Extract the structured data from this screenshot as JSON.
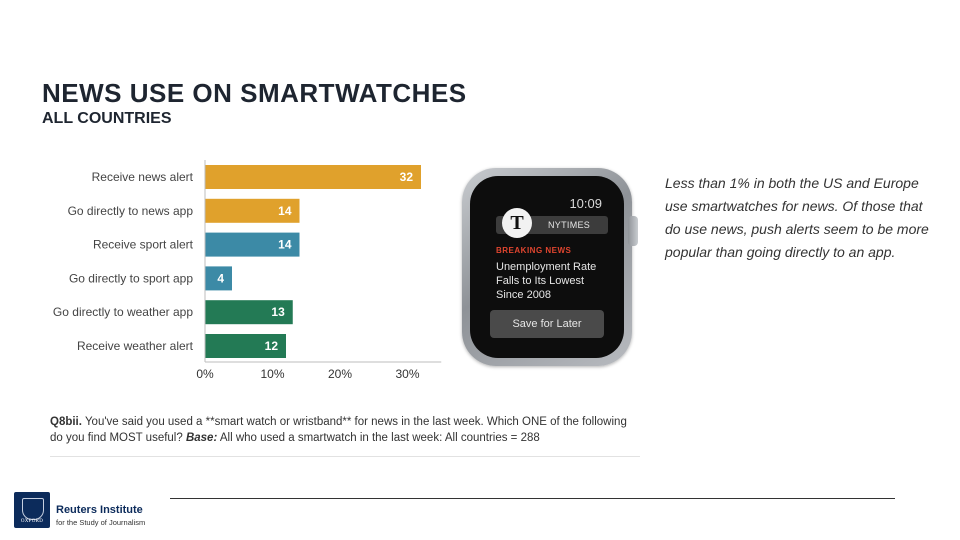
{
  "header": {
    "title": "NEWS USE ON SMARTWATCHES",
    "subtitle": "ALL COUNTRIES"
  },
  "chart_data": {
    "type": "bar",
    "orientation": "horizontal",
    "categories": [
      "Receive news alert",
      "Go directly to news app",
      "Receive sport alert",
      "Go directly to sport app",
      "Go directly to weather app",
      "Receive weather alert"
    ],
    "values": [
      32,
      14,
      14,
      4,
      13,
      12
    ],
    "colors": [
      "#e0a12c",
      "#e0a12c",
      "#3c8aa6",
      "#3c8aa6",
      "#237a55",
      "#237a55"
    ],
    "xticks": [
      "0%",
      "10%",
      "20%",
      "30%"
    ],
    "xlim": [
      0,
      35
    ],
    "grid": false
  },
  "watch": {
    "time": "10:09",
    "logo_letter": "T",
    "source": "NYTIMES",
    "breaking": "BREAKING NEWS",
    "headline": "Unemployment Rate Falls to Its Lowest Since 2008",
    "button": "Save for Later"
  },
  "note": "Less than 1% in both the US and Europe use smartwatches for news. Of those that do use news, push alerts seem to be more popular than going directly to an app.",
  "question": {
    "code": "Q8bii.",
    "text": " You've said you used a **smart watch or wristband** for news in the last week. Which ONE of the following do you find MOST useful? ",
    "base_label": "Base:",
    "base_text": " All who used a smartwatch in the last week: All countries = 288"
  },
  "footer": {
    "crest_text": "OXFORD",
    "org_name": "Reuters Institute",
    "org_tagline": "for the Study of Journalism"
  }
}
